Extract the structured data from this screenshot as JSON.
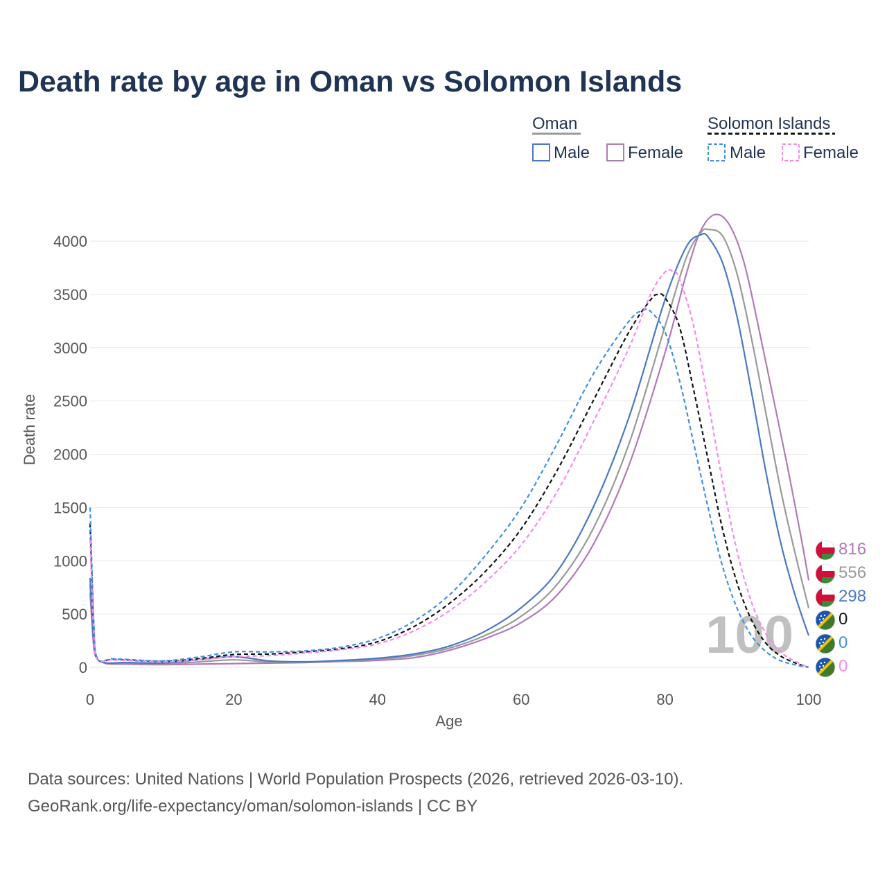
{
  "title": "Death rate by age in Oman vs Solomon Islands",
  "legend": {
    "groups": [
      {
        "country": "Oman",
        "line_color": "#999999",
        "dashed": false,
        "items": [
          {
            "label": "Male",
            "color": "#4a78c2"
          },
          {
            "label": "Female",
            "color": "#b07ab8"
          }
        ]
      },
      {
        "country": "Solomon Islands",
        "line_color": "#111111",
        "dashed": true,
        "items": [
          {
            "label": "Male",
            "color": "#3e8ee8"
          },
          {
            "label": "Female",
            "color": "#f58ae8"
          }
        ]
      }
    ]
  },
  "age_indicator": "100",
  "end_labels": [
    {
      "value": "816",
      "color": "#b07ab8",
      "flag": "oman-flag-icon"
    },
    {
      "value": "556",
      "color": "#999999",
      "flag": "oman-flag-icon"
    },
    {
      "value": "298",
      "color": "#4a78c2",
      "flag": "oman-flag-icon"
    },
    {
      "value": "0",
      "color": "#111111",
      "flag": "solomon-islands-flag-icon"
    },
    {
      "value": "0",
      "color": "#3e8ee8",
      "flag": "solomon-islands-flag-icon"
    },
    {
      "value": "0",
      "color": "#f58ae8",
      "flag": "solomon-islands-flag-icon"
    }
  ],
  "source_lines": [
    "Data sources: United Nations | World Population Prospects (2026, retrieved 2026-03-10).",
    "GeoRank.org/life-expectancy/oman/solomon-islands | CC BY"
  ],
  "chart_data": {
    "type": "line",
    "xlabel": "Age",
    "ylabel": "Death rate",
    "xlim": [
      0,
      100
    ],
    "ylim": [
      0,
      4300
    ],
    "xticks": [
      0,
      20,
      40,
      60,
      80,
      100
    ],
    "yticks": [
      0,
      500,
      1000,
      1500,
      2000,
      2500,
      3000,
      3500,
      4000
    ],
    "grid": true,
    "series": [
      {
        "name": "Oman Female",
        "color": "#b07ab8",
        "dashed": false,
        "width": 2.2,
        "points": [
          [
            0,
            700
          ],
          [
            0.5,
            200
          ],
          [
            1,
            80
          ],
          [
            2,
            40
          ],
          [
            3,
            30
          ],
          [
            5,
            30
          ],
          [
            10,
            25
          ],
          [
            15,
            30
          ],
          [
            20,
            35
          ],
          [
            25,
            40
          ],
          [
            30,
            45
          ],
          [
            35,
            55
          ],
          [
            40,
            65
          ],
          [
            45,
            90
          ],
          [
            50,
            160
          ],
          [
            55,
            270
          ],
          [
            60,
            420
          ],
          [
            65,
            680
          ],
          [
            70,
            1150
          ],
          [
            75,
            1900
          ],
          [
            80,
            2950
          ],
          [
            83,
            3700
          ],
          [
            85,
            4100
          ],
          [
            87,
            4250
          ],
          [
            89,
            4150
          ],
          [
            91,
            3800
          ],
          [
            93,
            3200
          ],
          [
            95,
            2550
          ],
          [
            97,
            1900
          ],
          [
            99,
            1200
          ],
          [
            100,
            816
          ]
        ]
      },
      {
        "name": "Oman Total",
        "color": "#999999",
        "dashed": false,
        "width": 2.2,
        "points": [
          [
            0,
            780
          ],
          [
            0.5,
            220
          ],
          [
            1,
            80
          ],
          [
            2,
            45
          ],
          [
            3,
            35
          ],
          [
            5,
            38
          ],
          [
            10,
            32
          ],
          [
            15,
            50
          ],
          [
            20,
            70
          ],
          [
            25,
            50
          ],
          [
            30,
            48
          ],
          [
            35,
            60
          ],
          [
            40,
            75
          ],
          [
            45,
            110
          ],
          [
            50,
            180
          ],
          [
            55,
            300
          ],
          [
            60,
            480
          ],
          [
            65,
            780
          ],
          [
            70,
            1300
          ],
          [
            75,
            2100
          ],
          [
            80,
            3200
          ],
          [
            83,
            3850
          ],
          [
            85,
            4080
          ],
          [
            86,
            4110
          ],
          [
            88,
            4050
          ],
          [
            90,
            3700
          ],
          [
            92,
            3100
          ],
          [
            94,
            2400
          ],
          [
            96,
            1700
          ],
          [
            98,
            1100
          ],
          [
            100,
            556
          ]
        ]
      },
      {
        "name": "Oman Male",
        "color": "#4a78c2",
        "dashed": false,
        "width": 2.2,
        "points": [
          [
            0,
            840
          ],
          [
            0.5,
            240
          ],
          [
            1,
            80
          ],
          [
            2,
            45
          ],
          [
            3,
            40
          ],
          [
            5,
            45
          ],
          [
            10,
            40
          ],
          [
            15,
            70
          ],
          [
            20,
            100
          ],
          [
            25,
            60
          ],
          [
            30,
            52
          ],
          [
            35,
            65
          ],
          [
            40,
            85
          ],
          [
            45,
            125
          ],
          [
            50,
            200
          ],
          [
            55,
            340
          ],
          [
            60,
            560
          ],
          [
            65,
            900
          ],
          [
            70,
            1500
          ],
          [
            75,
            2350
          ],
          [
            80,
            3450
          ],
          [
            83,
            3950
          ],
          [
            85,
            4060
          ],
          [
            86,
            4040
          ],
          [
            88,
            3800
          ],
          [
            90,
            3300
          ],
          [
            92,
            2600
          ],
          [
            94,
            1850
          ],
          [
            96,
            1200
          ],
          [
            98,
            700
          ],
          [
            100,
            298
          ]
        ]
      },
      {
        "name": "Solomon Islands Total",
        "color": "#111111",
        "dashed": true,
        "width": 2.2,
        "points": [
          [
            0,
            1350
          ],
          [
            0.5,
            400
          ],
          [
            1,
            80
          ],
          [
            3,
            75
          ],
          [
            5,
            70
          ],
          [
            10,
            55
          ],
          [
            15,
            80
          ],
          [
            20,
            120
          ],
          [
            25,
            125
          ],
          [
            30,
            145
          ],
          [
            35,
            175
          ],
          [
            40,
            240
          ],
          [
            45,
            380
          ],
          [
            50,
            600
          ],
          [
            55,
            900
          ],
          [
            60,
            1300
          ],
          [
            65,
            1850
          ],
          [
            70,
            2500
          ],
          [
            75,
            3150
          ],
          [
            78,
            3450
          ],
          [
            79,
            3500
          ],
          [
            80,
            3470
          ],
          [
            82,
            3200
          ],
          [
            84,
            2600
          ],
          [
            86,
            1950
          ],
          [
            88,
            1300
          ],
          [
            90,
            800
          ],
          [
            92,
            450
          ],
          [
            94,
            230
          ],
          [
            96,
            110
          ],
          [
            98,
            45
          ],
          [
            100,
            0
          ]
        ]
      },
      {
        "name": "Solomon Islands Male",
        "color": "#3e8ee8",
        "dashed": true,
        "width": 2.2,
        "points": [
          [
            0,
            1500
          ],
          [
            0.5,
            450
          ],
          [
            1,
            85
          ],
          [
            3,
            80
          ],
          [
            5,
            75
          ],
          [
            10,
            60
          ],
          [
            15,
            95
          ],
          [
            20,
            145
          ],
          [
            25,
            145
          ],
          [
            30,
            155
          ],
          [
            35,
            190
          ],
          [
            40,
            270
          ],
          [
            45,
            430
          ],
          [
            50,
            680
          ],
          [
            55,
            1050
          ],
          [
            60,
            1500
          ],
          [
            65,
            2100
          ],
          [
            70,
            2750
          ],
          [
            75,
            3250
          ],
          [
            77,
            3350
          ],
          [
            78,
            3340
          ],
          [
            80,
            3150
          ],
          [
            82,
            2700
          ],
          [
            84,
            2100
          ],
          [
            86,
            1500
          ],
          [
            88,
            950
          ],
          [
            90,
            560
          ],
          [
            92,
            300
          ],
          [
            94,
            150
          ],
          [
            96,
            65
          ],
          [
            98,
            25
          ],
          [
            100,
            0
          ]
        ]
      },
      {
        "name": "Solomon Islands Female",
        "color": "#f58ae8",
        "dashed": true,
        "width": 2.2,
        "points": [
          [
            0,
            1200
          ],
          [
            0.5,
            350
          ],
          [
            1,
            75
          ],
          [
            3,
            70
          ],
          [
            5,
            65
          ],
          [
            10,
            50
          ],
          [
            15,
            70
          ],
          [
            20,
            100
          ],
          [
            25,
            110
          ],
          [
            30,
            135
          ],
          [
            35,
            165
          ],
          [
            40,
            220
          ],
          [
            45,
            340
          ],
          [
            50,
            530
          ],
          [
            55,
            800
          ],
          [
            60,
            1150
          ],
          [
            65,
            1650
          ],
          [
            70,
            2300
          ],
          [
            75,
            3000
          ],
          [
            78,
            3500
          ],
          [
            80,
            3710
          ],
          [
            81,
            3720
          ],
          [
            82,
            3650
          ],
          [
            84,
            3200
          ],
          [
            86,
            2500
          ],
          [
            88,
            1750
          ],
          [
            90,
            1100
          ],
          [
            92,
            620
          ],
          [
            94,
            320
          ],
          [
            96,
            150
          ],
          [
            98,
            60
          ],
          [
            100,
            0
          ]
        ]
      }
    ]
  }
}
